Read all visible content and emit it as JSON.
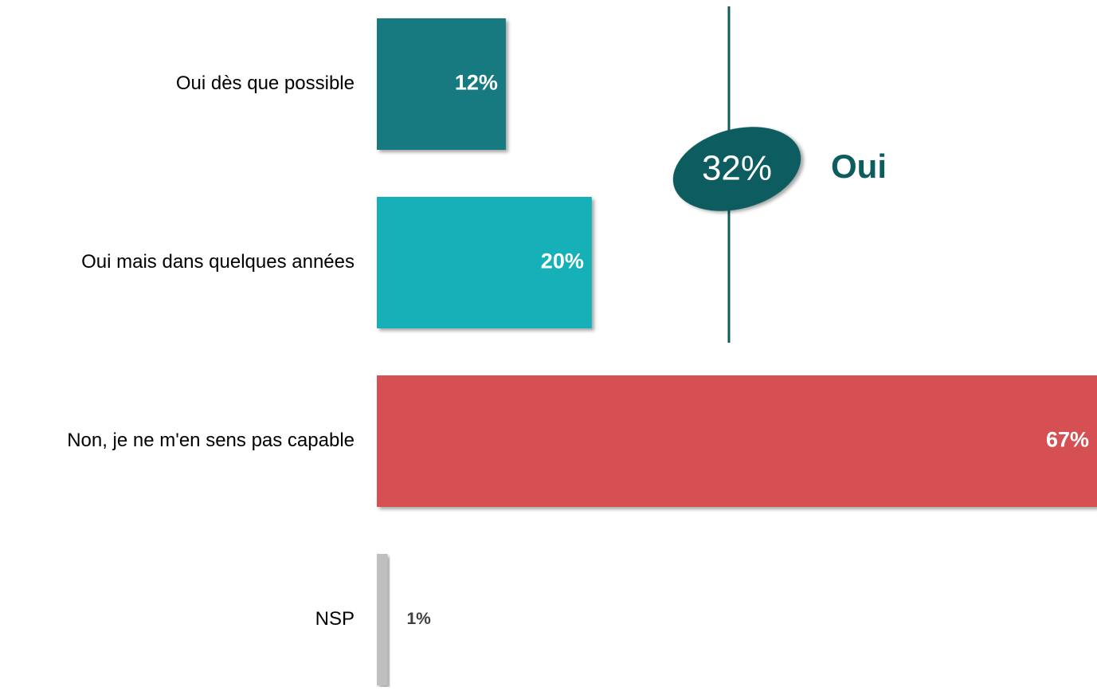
{
  "chart_data": {
    "type": "hbar",
    "categories": [
      "Oui dès que possible",
      "Oui mais dans quelques années",
      "Non, je ne m'en sens pas capable",
      "NSP"
    ],
    "values": [
      12,
      20,
      67,
      1
    ],
    "value_labels": [
      "12%",
      "20%",
      "67%",
      "1%"
    ],
    "colors": [
      "#137a80",
      "#15b0b8",
      "#d64f52",
      "#bfbfbf"
    ],
    "annotation": {
      "value_label": "32%",
      "label": "Oui"
    }
  }
}
